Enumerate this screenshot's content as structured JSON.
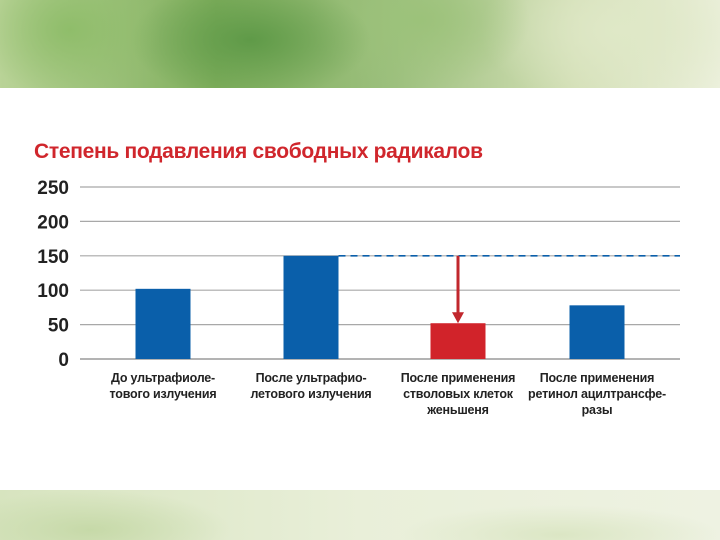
{
  "chart_data": {
    "type": "bar",
    "title": "Степень подавления свободных радикалов",
    "categories": [
      [
        "До ультрафиоле-",
        "тового излучения"
      ],
      [
        "После ультрафио-",
        "летового излучения"
      ],
      [
        "После применения",
        "стволовых клеток",
        "женьшеня"
      ],
      [
        "После применения",
        "ретинол ацилтрансфе-",
        "разы"
      ]
    ],
    "values": [
      102,
      150,
      52,
      78
    ],
    "bar_colors": [
      "#0a5faa",
      "#0a5faa",
      "#d1232a",
      "#0a5faa"
    ],
    "yticks": [
      "0",
      "50",
      "100",
      "150",
      "200",
      "250"
    ],
    "ylim": [
      0,
      250
    ],
    "reference_line": {
      "value": 150,
      "style": "dashed",
      "color": "#0a5faa"
    },
    "annotation_arrow": {
      "category_index": 2,
      "from": 150,
      "to": 52,
      "color": "#c1272d"
    },
    "grid": true,
    "legend": "none"
  }
}
